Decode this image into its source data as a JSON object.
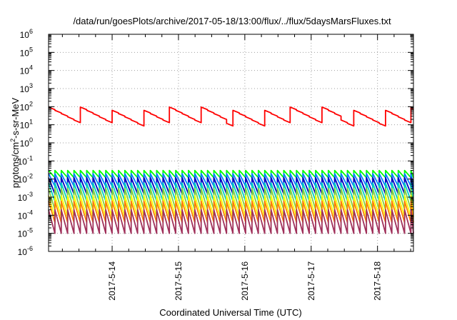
{
  "chart_data": {
    "type": "line",
    "title": "/data/run/goesPlots/archive/2017-05-18/13:00/flux/../flux/5daysMarsFluxes.txt",
    "xlabel": "Coordinated Universal Time (UTC)",
    "ylabel": "protons/cm2-s-sr-MeV",
    "ylabel_parts": {
      "pre": "protons/cm",
      "sup": "2",
      "post": "-s-sr-MeV"
    },
    "yscale": "log",
    "ylim": [
      1e-06,
      1000000.0
    ],
    "xlim": [
      "2017-05-13 01:00",
      "2017-05-18 13:00"
    ],
    "grid": true,
    "ytick_labels": [
      {
        "base": "10",
        "exp": "-6"
      },
      {
        "base": "10",
        "exp": "-5"
      },
      {
        "base": "10",
        "exp": "-4"
      },
      {
        "base": "10",
        "exp": "-3"
      },
      {
        "base": "10",
        "exp": "-2"
      },
      {
        "base": "10",
        "exp": "-1"
      },
      {
        "base": "10",
        "exp": "0"
      },
      {
        "base": "10",
        "exp": "1"
      },
      {
        "base": "10",
        "exp": "2"
      },
      {
        "base": "10",
        "exp": "3"
      },
      {
        "base": "10",
        "exp": "4"
      },
      {
        "base": "10",
        "exp": "5"
      },
      {
        "base": "10",
        "exp": "6"
      }
    ],
    "xticks": [
      {
        "label": "2017-5-14",
        "at": "2017-05-14 00:00"
      },
      {
        "label": "2017-5-15",
        "at": "2017-05-15 00:00"
      },
      {
        "label": "2017-5-16",
        "at": "2017-05-16 00:00"
      },
      {
        "label": "2017-5-17",
        "at": "2017-05-17 00:00"
      },
      {
        "label": "2017-5-18",
        "at": "2017-05-18 00:00"
      }
    ],
    "sawtooth_period_hours": 2.3,
    "series": [
      {
        "color": "#ff0000",
        "cycle_hours": 10.9,
        "min": 12,
        "max": 95
      },
      {
        "color": "#00ff00",
        "cycle_hours": 2.3,
        "min": 0.012,
        "max": 0.03
      },
      {
        "color": "#0080ff",
        "cycle_hours": 2.3,
        "min": 0.004,
        "max": 0.02
      },
      {
        "color": "#0000c0",
        "cycle_hours": 2.3,
        "min": 0.0015,
        "max": 0.012
      },
      {
        "color": "#00d0c0",
        "cycle_hours": 2.3,
        "min": 0.0006,
        "max": 0.006
      },
      {
        "color": "#80d040",
        "cycle_hours": 2.3,
        "min": 0.0002,
        "max": 0.003
      },
      {
        "color": "#ffff00",
        "cycle_hours": 2.3,
        "min": 8e-05,
        "max": 0.0012
      },
      {
        "color": "#ff8000",
        "cycle_hours": 2.3,
        "min": 4e-05,
        "max": 0.0006
      },
      {
        "color": "#a0305a",
        "cycle_hours": 2.3,
        "min": 1e-05,
        "max": 0.0002
      }
    ]
  }
}
